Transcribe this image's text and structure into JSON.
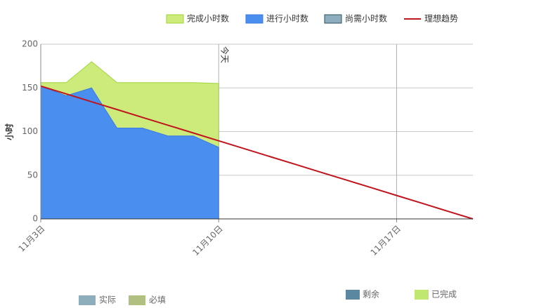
{
  "chart_data": {
    "type": "area",
    "y_label": "小时",
    "annotation": "今天",
    "annotation_category": 7,
    "categories": [
      "11月3日",
      null,
      null,
      null,
      null,
      null,
      null,
      "11月10日",
      null,
      null,
      null,
      null,
      null,
      null,
      "11月17日",
      null,
      null,
      null
    ],
    "ylim": [
      0,
      200
    ],
    "yticks": [
      0,
      50,
      100,
      150,
      200
    ],
    "grid": true,
    "series": [
      {
        "name": "完成小时数",
        "kind": "area",
        "color": "#cdeb7b",
        "stroke": "#9fd53a",
        "values": [
          156,
          156,
          180,
          156,
          156,
          156,
          156,
          155,
          null,
          null,
          null,
          null,
          null,
          null,
          null,
          null,
          null,
          null
        ]
      },
      {
        "name": "进行小时数",
        "kind": "area",
        "color": "#4a8ef0",
        "stroke": "#3a7ae0",
        "values": [
          152,
          141,
          150,
          104,
          104,
          95,
          95,
          82,
          null,
          null,
          null,
          null,
          null,
          null,
          null,
          null,
          null,
          null
        ]
      },
      {
        "name": "尚需小时数",
        "kind": "area",
        "color": "#8eadbd",
        "stroke": "#2f4f5f",
        "values": [
          null,
          null,
          null,
          null,
          null,
          null,
          null,
          null,
          null,
          null,
          null,
          null,
          null,
          null,
          null,
          null,
          null,
          null
        ]
      },
      {
        "name": "理想趋势",
        "kind": "line",
        "color": "#c0141e",
        "values": [
          152,
          143.1,
          134.1,
          125.2,
          116.2,
          107.3,
          98.4,
          89.4,
          80.5,
          71.5,
          62.6,
          53.6,
          44.7,
          35.8,
          26.8,
          17.9,
          8.9,
          0
        ]
      }
    ],
    "footer_legend": [
      {
        "name": "实际",
        "color": "#8eadbd"
      },
      {
        "name": "必填",
        "color": "#b0c080"
      },
      {
        "name": "剩余",
        "color": "#5b88a0"
      },
      {
        "name": "已完成",
        "color": "#c0e870"
      }
    ]
  }
}
